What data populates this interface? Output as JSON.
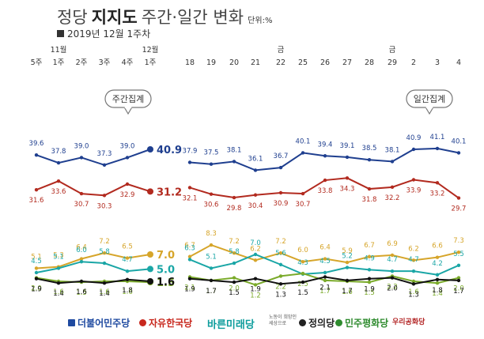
{
  "title": {
    "light": "정당",
    "bold": "지지도",
    "rest": "주간·일간 변화",
    "unit": "단위:%",
    "subtitle": "2019년 12월 1주차"
  },
  "chart_data": {
    "type": "line",
    "weekly": {
      "box_label": "주간집계",
      "categories": [
        {
          "top": "",
          "bottom": "5주"
        },
        {
          "top": "11월",
          "bottom": "1주"
        },
        {
          "top": "",
          "bottom": "2주"
        },
        {
          "top": "",
          "bottom": "3주"
        },
        {
          "top": "",
          "bottom": "4주"
        },
        {
          "top": "12월",
          "bottom": "1주"
        }
      ],
      "series": [
        {
          "name": "더불어민주당",
          "color": "#1f3f8f",
          "values": [
            39.6,
            37.8,
            39.0,
            37.3,
            39.0,
            40.9
          ]
        },
        {
          "name": "자유한국당",
          "color": "#b22a1f",
          "values": [
            31.6,
            33.6,
            30.7,
            30.3,
            32.9,
            31.2
          ]
        },
        {
          "name": "정의당",
          "color": "#d6a52a",
          "values": [
            5.1,
            5.3,
            6.4,
            7.2,
            6.5,
            7.0
          ]
        },
        {
          "name": "바른미래당",
          "color": "#1aa6a6",
          "values": [
            4.5,
            5.1,
            6.0,
            5.8,
            4.7,
            5.0
          ]
        },
        {
          "name": "민주평화당",
          "color": "#7aaa2a",
          "values": [
            2.0,
            1.6,
            1.5,
            1.6,
            1.6,
            1.5
          ]
        },
        {
          "name": "우리공화당",
          "color": "#111111",
          "values": [
            1.9,
            1.4,
            1.6,
            1.4,
            1.8,
            1.6
          ]
        }
      ]
    },
    "daily": {
      "box_label": "일간집계",
      "categories": [
        {
          "top": "",
          "bottom": "18"
        },
        {
          "top": "",
          "bottom": "19"
        },
        {
          "top": "",
          "bottom": "20"
        },
        {
          "top": "",
          "bottom": "21"
        },
        {
          "top": "금",
          "bottom": "22"
        },
        {
          "top": "",
          "bottom": "25"
        },
        {
          "top": "",
          "bottom": "26"
        },
        {
          "top": "",
          "bottom": "27"
        },
        {
          "top": "",
          "bottom": "28"
        },
        {
          "top": "금",
          "bottom": "29"
        },
        {
          "top": "",
          "bottom": "2"
        },
        {
          "top": "",
          "bottom": "3"
        },
        {
          "top": "",
          "bottom": "4"
        }
      ],
      "series": [
        {
          "name": "더불어민주당",
          "color": "#1f3f8f",
          "values": [
            37.9,
            37.5,
            38.1,
            36.1,
            36.7,
            40.1,
            39.4,
            39.1,
            38.5,
            38.1,
            40.9,
            41.1,
            40.1
          ]
        },
        {
          "name": "자유한국당",
          "color": "#b22a1f",
          "values": [
            32.1,
            30.6,
            29.8,
            30.4,
            30.9,
            30.7,
            33.8,
            34.3,
            31.8,
            32.2,
            33.9,
            33.2,
            29.7
          ]
        },
        {
          "name": "정의당",
          "color": "#d6a52a",
          "values": [
            6.7,
            8.3,
            7.2,
            6.2,
            7.2,
            6.0,
            6.4,
            5.9,
            6.7,
            6.9,
            6.2,
            6.6,
            7.3
          ]
        },
        {
          "name": "바른미래당",
          "color": "#1aa6a6",
          "values": [
            6.3,
            5.1,
            5.8,
            7.0,
            5.6,
            4.3,
            4.5,
            5.2,
            4.9,
            4.7,
            4.7,
            4.2,
            5.5
          ]
        },
        {
          "name": "민주평화당",
          "color": "#7aaa2a",
          "values": [
            2.1,
            1.7,
            2.0,
            1.2,
            2.2,
            2.5,
            1.7,
            1.6,
            1.5,
            2.2,
            1.6,
            1.4,
            2.0
          ]
        },
        {
          "name": "우리공화당",
          "color": "#111111",
          "values": [
            1.9,
            1.7,
            1.5,
            1.9,
            1.3,
            1.5,
            2.1,
            1.7,
            1.9,
            2.0,
            1.3,
            1.8,
            1.7
          ]
        }
      ]
    }
  },
  "legend": [
    {
      "label": "더불어민주당",
      "color": "#1f4aa0",
      "icon": "minjoo-logo-icon"
    },
    {
      "label": "자유한국당",
      "color": "#c8281e",
      "icon": "korea-party-logo-icon"
    },
    {
      "label": "바른미래당",
      "color": "#0c9c9c",
      "icon": ""
    },
    {
      "label": "노동이 희망인 세상으로",
      "color": "#555555",
      "icon": ""
    },
    {
      "label": "정의당",
      "color": "#222222",
      "icon": "justice-party-logo-icon"
    },
    {
      "label": "민주평화당",
      "color": "#2e8b2e",
      "icon": "peace-party-logo-icon"
    },
    {
      "label": "우리공화당",
      "color": "#b22222",
      "icon": ""
    }
  ]
}
